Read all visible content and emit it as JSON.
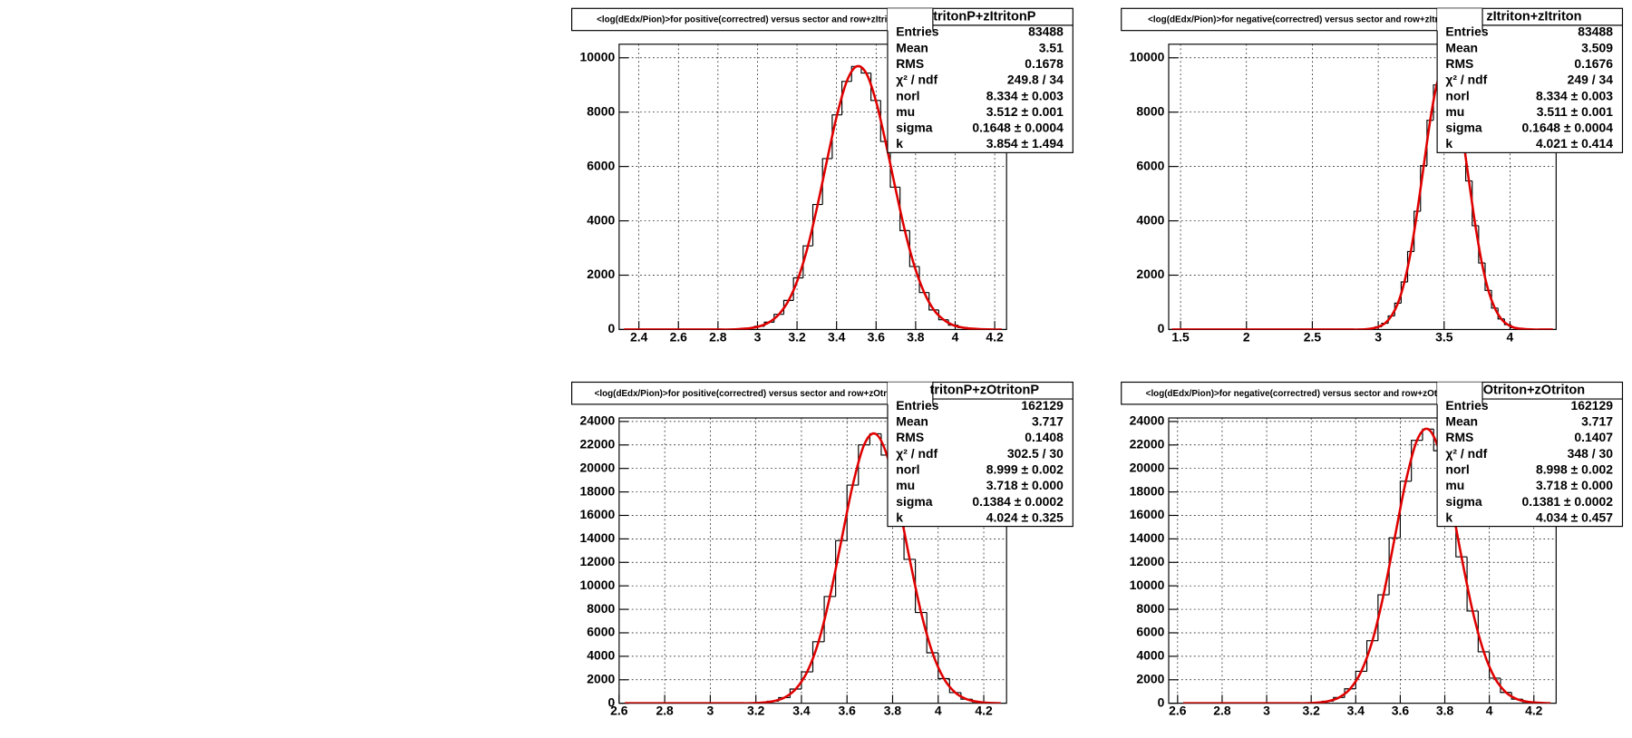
{
  "chart_data": [
    {
      "type": "histogram",
      "title": "<log(dEdx/Pion)>for positive(correctred) versus sector and row+zItritonP",
      "stats_title": "tritonP+zItritonP",
      "stats": [
        [
          "Entries",
          "83488"
        ],
        [
          "Mean",
          "3.51"
        ],
        [
          "RMS",
          "0.1678"
        ],
        [
          "χ² / ndf",
          "249.8 / 34"
        ],
        [
          "norl",
          "8.334 ± 0.003"
        ],
        [
          "mu",
          "3.512 ± 0.001"
        ],
        [
          "sigma",
          "0.1648 ± 0.0004"
        ],
        [
          "k",
          "3.854 ± 1.494"
        ]
      ],
      "bins": [
        2.3,
        2.349,
        2.398,
        2.447,
        2.496,
        2.545,
        2.594,
        2.643,
        2.692,
        2.741,
        2.79,
        2.839,
        2.888,
        2.937,
        2.986,
        3.035,
        3.084,
        3.133,
        3.182,
        3.231,
        3.28,
        3.329,
        3.378,
        3.427,
        3.476,
        3.525,
        3.574,
        3.623,
        3.672,
        3.721,
        3.77,
        3.819,
        3.868,
        3.917,
        3.966,
        4.015,
        4.064,
        4.113,
        4.162,
        4.211,
        4.26
      ],
      "values": [
        0,
        0,
        0,
        0,
        0,
        0,
        0,
        0,
        0,
        0,
        0,
        0,
        20,
        50,
        120,
        270,
        560,
        1070,
        1900,
        3080,
        4600,
        6290,
        7900,
        9130,
        9680,
        9440,
        8430,
        6920,
        5240,
        3640,
        2320,
        1360,
        720,
        360,
        160,
        70,
        30,
        10,
        0,
        0
      ],
      "color": "#000000",
      "fit_color": "#e00000",
      "xlim": [
        2.3,
        4.26
      ],
      "ylim": [
        0,
        10500
      ],
      "xticks": [
        2.4,
        2.6,
        2.8,
        3,
        3.2,
        3.4,
        3.6,
        3.8,
        4,
        4.2
      ],
      "yticks": [
        0,
        2000,
        4000,
        6000,
        8000,
        10000
      ],
      "grid": true
    },
    {
      "type": "histogram",
      "title": "<log(dEdx/Pion)>for negative(correctred) versus sector and row+zItriton",
      "stats_title": "zItriton+zItriton",
      "stats": [
        [
          "Entries",
          "83488"
        ],
        [
          "Mean",
          "3.509"
        ],
        [
          "RMS",
          "0.1676"
        ],
        [
          "χ² / ndf",
          "249 / 34"
        ],
        [
          "norl",
          "8.334 ± 0.003"
        ],
        [
          "mu",
          "3.511 ± 0.001"
        ],
        [
          "sigma",
          "0.1648 ± 0.0004"
        ],
        [
          "k",
          "4.021 ± 0.414"
        ]
      ],
      "bins": [
        1.41,
        1.459,
        1.508,
        1.557,
        1.606,
        1.655,
        1.704,
        1.753,
        1.802,
        1.851,
        1.9,
        1.949,
        1.998,
        2.047,
        2.096,
        2.145,
        2.194,
        2.243,
        2.292,
        2.341,
        2.39,
        2.439,
        2.488,
        2.537,
        2.586,
        2.635,
        2.684,
        2.733,
        2.782,
        2.831,
        2.88,
        2.929,
        2.978,
        3.027,
        3.076,
        3.125,
        3.174,
        3.223,
        3.272,
        3.321,
        3.37,
        3.419,
        3.468,
        3.517,
        3.566,
        3.615,
        3.664,
        3.713,
        3.762,
        3.811,
        3.86,
        3.909,
        3.958,
        4.007,
        4.056,
        4.105,
        4.154,
        4.203,
        4.252,
        4.301,
        4.35
      ],
      "values": [
        0,
        0,
        0,
        0,
        0,
        0,
        0,
        0,
        0,
        0,
        0,
        0,
        0,
        0,
        0,
        0,
        0,
        0,
        0,
        0,
        0,
        0,
        0,
        0,
        0,
        0,
        0,
        0,
        0,
        0,
        10,
        40,
        100,
        230,
        500,
        970,
        1750,
        2870,
        4350,
        6030,
        7700,
        9000,
        9650,
        9520,
        8600,
        7150,
        5470,
        3820,
        2450,
        1440,
        790,
        390,
        180,
        70,
        30,
        10,
        0,
        0,
        0,
        0
      ],
      "color": "#000000",
      "fit_color": "#e00000",
      "xlim": [
        1.41,
        4.35
      ],
      "ylim": [
        0,
        10500
      ],
      "xticks": [
        1.5,
        2,
        2.5,
        3,
        3.5,
        4
      ],
      "yticks": [
        0,
        2000,
        4000,
        6000,
        8000,
        10000
      ],
      "grid": true
    },
    {
      "type": "histogram",
      "title": "<log(dEdx/Pion)>for positive(correctred) versus sector and row+zOtritonP",
      "stats_title": "tritonP+zOtritonP",
      "stats": [
        [
          "Entries",
          "162129"
        ],
        [
          "Mean",
          "3.717"
        ],
        [
          "RMS",
          "0.1408"
        ],
        [
          "χ² / ndf",
          "302.5 / 30"
        ],
        [
          "norl",
          "8.999 ± 0.002"
        ],
        [
          "mu",
          "3.718 ± 0.000"
        ],
        [
          "sigma",
          "0.1384 ± 0.0002"
        ],
        [
          "k",
          "4.024 ± 0.325"
        ]
      ],
      "bins": [
        2.6,
        2.65,
        2.7,
        2.75,
        2.8,
        2.85,
        2.9,
        2.95,
        3,
        3.05,
        3.1,
        3.15,
        3.2,
        3.25,
        3.3,
        3.35,
        3.4,
        3.45,
        3.5,
        3.55,
        3.6,
        3.65,
        3.7,
        3.75,
        3.8,
        3.85,
        3.9,
        3.95,
        4,
        4.05,
        4.1,
        4.15,
        4.2,
        4.25,
        4.3
      ],
      "values": [
        0,
        0,
        0,
        0,
        0,
        0,
        0,
        0,
        0,
        0,
        0,
        0,
        50,
        170,
        480,
        1210,
        2670,
        5240,
        9090,
        13850,
        18580,
        22010,
        22950,
        21140,
        17140,
        12260,
        7730,
        4300,
        2100,
        910,
        350,
        120,
        30,
        0
      ],
      "color": "#000000",
      "fit_color": "#e00000",
      "xlim": [
        2.6,
        4.3
      ],
      "ylim": [
        0,
        24300
      ],
      "xticks": [
        2.6,
        2.8,
        3,
        3.2,
        3.4,
        3.6,
        3.8,
        4,
        4.2
      ],
      "yticks": [
        0,
        2000,
        4000,
        6000,
        8000,
        10000,
        12000,
        14000,
        16000,
        18000,
        20000,
        22000,
        24000
      ],
      "grid": true
    },
    {
      "type": "histogram",
      "title": "<log(dEdx/Pion)>for negative(correctred) versus sector and row+zOtriton",
      "stats_title": "Otriton+zOtriton",
      "stats": [
        [
          "Entries",
          "162129"
        ],
        [
          "Mean",
          "3.717"
        ],
        [
          "RMS",
          "0.1407"
        ],
        [
          "χ² / ndf",
          "348 / 30"
        ],
        [
          "norl",
          "8.998 ± 0.002"
        ],
        [
          "mu",
          "3.718 ± 0.000"
        ],
        [
          "sigma",
          "0.1381 ± 0.0002"
        ],
        [
          "k",
          "4.034 ± 0.457"
        ]
      ],
      "bins": [
        2.6,
        2.65,
        2.7,
        2.75,
        2.8,
        2.85,
        2.9,
        2.95,
        3,
        3.05,
        3.1,
        3.15,
        3.2,
        3.25,
        3.3,
        3.35,
        3.4,
        3.45,
        3.5,
        3.55,
        3.6,
        3.65,
        3.7,
        3.75,
        3.8,
        3.85,
        3.9,
        3.95,
        4,
        4.05,
        4.1,
        4.15,
        4.2,
        4.25,
        4.3
      ],
      "values": [
        0,
        0,
        0,
        0,
        0,
        0,
        0,
        0,
        0,
        0,
        0,
        0,
        50,
        170,
        490,
        1230,
        2720,
        5330,
        9240,
        14090,
        18910,
        22390,
        23350,
        21510,
        17430,
        12470,
        7860,
        4380,
        2140,
        920,
        350,
        120,
        40,
        0
      ],
      "color": "#000000",
      "fit_color": "#e00000",
      "xlim": [
        2.56,
        4.3
      ],
      "ylim": [
        0,
        24300
      ],
      "xticks": [
        2.6,
        2.8,
        3,
        3.2,
        3.4,
        3.6,
        3.8,
        4,
        4.2
      ],
      "yticks": [
        0,
        2000,
        4000,
        6000,
        8000,
        10000,
        12000,
        14000,
        16000,
        18000,
        20000,
        22000,
        24000
      ],
      "grid": true
    }
  ]
}
